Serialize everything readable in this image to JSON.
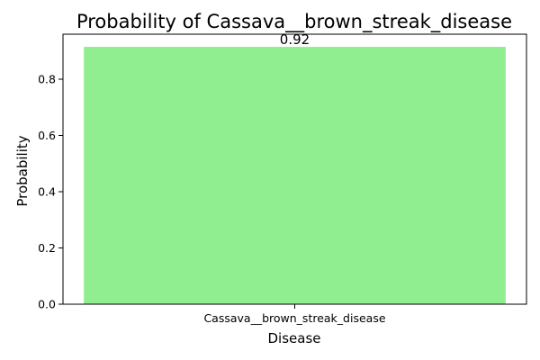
{
  "chart_data": {
    "type": "bar",
    "title": "Probability of Cassava__brown_streak_disease",
    "xlabel": "Disease",
    "ylabel": "Probability",
    "categories": [
      "Cassava__brown_streak_disease"
    ],
    "values": [
      0.915
    ],
    "data_labels": [
      "0.92"
    ],
    "ylim": [
      0,
      0.96
    ],
    "yticks": [
      0.0,
      0.2,
      0.4,
      0.6,
      0.8
    ],
    "ytick_labels": [
      "0.0",
      "0.2",
      "0.4",
      "0.6",
      "0.8"
    ],
    "bar_color": "#90ee90",
    "grid": false
  }
}
